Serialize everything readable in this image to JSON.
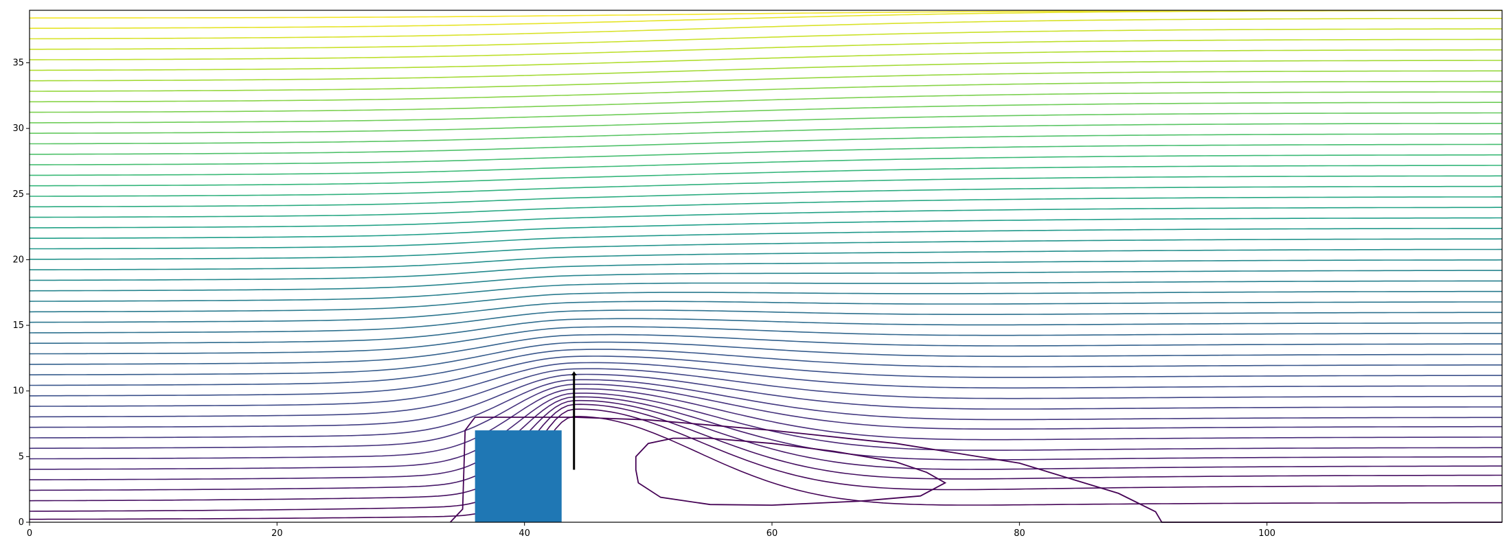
{
  "chart_data": {
    "type": "contour",
    "title": "",
    "xlabel": "",
    "ylabel": "",
    "xlim": [
      0,
      119
    ],
    "ylim": [
      0,
      39
    ],
    "grid": false,
    "x_ticks": [
      {
        "value": 0,
        "label": "0"
      },
      {
        "value": 20,
        "label": "20"
      },
      {
        "value": 40,
        "label": "40"
      },
      {
        "value": 60,
        "label": "60"
      },
      {
        "value": 80,
        "label": "80"
      },
      {
        "value": 100,
        "label": "100"
      }
    ],
    "y_ticks": [
      {
        "value": 0,
        "label": "0"
      },
      {
        "value": 5,
        "label": "5"
      },
      {
        "value": 10,
        "label": "10"
      },
      {
        "value": 15,
        "label": "15"
      },
      {
        "value": 20,
        "label": "20"
      },
      {
        "value": 25,
        "label": "25"
      },
      {
        "value": 30,
        "label": "30"
      },
      {
        "value": 35,
        "label": "35"
      }
    ],
    "colormap": "viridis",
    "obstacle": {
      "x0": 36,
      "x1": 43,
      "y0": 0,
      "y1": 7,
      "color": "#1f77b4"
    },
    "arrow": {
      "x": 44,
      "y_start": 4,
      "y_end": 11.5,
      "color": "#000000"
    },
    "streamlines_far_field": {
      "inlet_levels": [
        0.2,
        0.8,
        1.6,
        2.4,
        3.2,
        4.0,
        4.8,
        5.6,
        6.4,
        7.2,
        8.0,
        8.8,
        9.6,
        10.4,
        11.2,
        12.0,
        12.8,
        13.6,
        14.4,
        15.2,
        16.0,
        16.8,
        17.6,
        18.4,
        19.2,
        20.0,
        20.8,
        21.6,
        22.4,
        23.2,
        24.0,
        24.8,
        25.6,
        26.4,
        27.2,
        28.0,
        28.8,
        29.6,
        30.4,
        31.2,
        32.0,
        32.8,
        33.6,
        34.4,
        35.2,
        36.0,
        36.8,
        37.6,
        38.4
      ],
      "outlet_levels": [
        1.5,
        2.8,
        3.6,
        4.3,
        5.0,
        5.7,
        6.5,
        7.3,
        8.0,
        8.8,
        9.6,
        10.4,
        11.2,
        12.0,
        12.8,
        13.6,
        14.4,
        15.2,
        16.0,
        16.8,
        17.6,
        18.4,
        19.2,
        20.0,
        20.8,
        21.6,
        22.4,
        23.2,
        24.0,
        24.8,
        25.6,
        26.4,
        27.2,
        28.0,
        28.8,
        29.6,
        30.4,
        31.2,
        32.0,
        32.8,
        33.6,
        34.4,
        35.2,
        36.0,
        36.8,
        37.6,
        38.4,
        39.0,
        39.0
      ]
    },
    "streamlines_traced": [
      {
        "name": "dividing",
        "x": [
          34,
          35,
          35.2,
          36,
          40,
          44,
          50,
          60,
          70,
          80,
          88,
          91,
          91.5,
          119
        ],
        "y": [
          0,
          1,
          7,
          8,
          8,
          8,
          7.8,
          7.0,
          6.0,
          4.5,
          2.2,
          0.8,
          0,
          0
        ]
      },
      {
        "name": "recirculation",
        "closed": true,
        "x": [
          49,
          50,
          52,
          55,
          60,
          65,
          70,
          72.5,
          74,
          72,
          67,
          60,
          55,
          51,
          49.2,
          49
        ],
        "y": [
          5,
          6,
          6.4,
          6.4,
          6.0,
          5.4,
          4.6,
          3.8,
          3.0,
          2.0,
          1.6,
          1.3,
          1.35,
          1.9,
          3.0,
          4.0
        ]
      }
    ]
  }
}
